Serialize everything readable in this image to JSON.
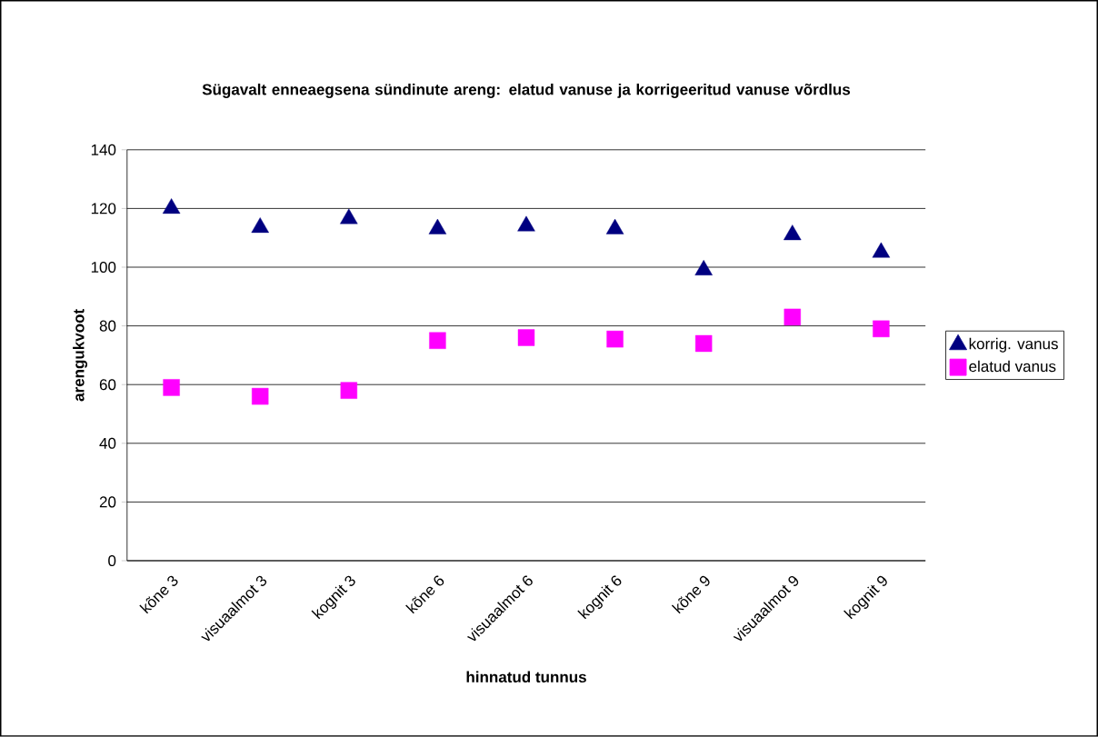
{
  "chart_data": {
    "type": "scatter",
    "title": "Sügavalt enneaegsena sündinute areng: elatud vanuse ja korrigeeritud vanuse võrdlus",
    "xlabel": "hinnatud tunnus",
    "ylabel": "arengukvoot",
    "categories": [
      "kõne 3",
      "visuaalmot 3",
      "kognit 3",
      "kõne 6",
      "visuaalmot 6",
      "kognit 6",
      "kõne 9",
      "visuaalmot 9",
      "kognit 9"
    ],
    "series": [
      {
        "name": "korrig. vanus",
        "color": "#000080",
        "marker": "triangle",
        "values": [
          120,
          113.5,
          116.5,
          113,
          114,
          113,
          99,
          111,
          105
        ]
      },
      {
        "name": "elatud vanus",
        "color": "#ff00ff",
        "marker": "square",
        "values": [
          59,
          56,
          58,
          75,
          76,
          75.5,
          74,
          83,
          79
        ]
      }
    ],
    "ylim": [
      0,
      140
    ],
    "yticks": [
      0,
      20,
      40,
      60,
      80,
      100,
      120,
      140
    ],
    "grid": "y",
    "legend": "right"
  }
}
